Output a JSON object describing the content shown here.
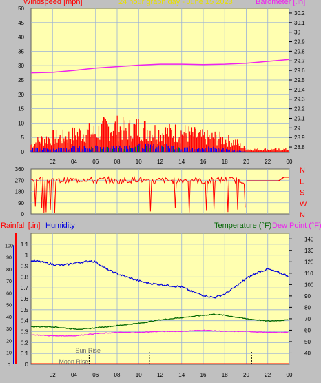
{
  "header": {
    "wind_label": "Windspeed [mph]",
    "title": "24 hour graph day - June 15 2023",
    "baro_label": "Barometer [.in]",
    "rain_label": "Rainfall [.in]",
    "humidity_label": "Humidity",
    "temp_label": "Temperature (°F)",
    "dew_label": "Dew Point (°F)",
    "sunrise_label": "Sun Rise",
    "moonrise_label": "Moon Rise"
  },
  "colors": {
    "wind": "#ff0000",
    "gust": "#ff0000",
    "wind_avg": "#0000ff",
    "wind_low": "#008000",
    "baro": "#ee22ee",
    "direction": "#ff0000",
    "humidity": "#0000dd",
    "temperature": "#006600",
    "dewpoint": "#ee22ee",
    "plot_bg": "#ffffb0",
    "grid": "#9ab0d8"
  },
  "chart_data": [
    {
      "type": "line",
      "title": "24 hour graph day - June 15 2023",
      "x_ticks": [
        "02",
        "04",
        "06",
        "08",
        "10",
        "12",
        "14",
        "16",
        "18",
        "20",
        "22",
        "00"
      ],
      "ylabel": "Windspeed [mph]",
      "ylim": [
        0,
        50
      ],
      "y_ticks": [
        0,
        5,
        10,
        15,
        20,
        25,
        30,
        35,
        40,
        45,
        50
      ],
      "y2label": "Barometer [.in]",
      "y2lim": [
        28.75,
        30.25
      ],
      "y2_ticks": [
        "28.8",
        "28.9",
        "29",
        "29.1",
        "29.2",
        "29.3",
        "29.4",
        "29.5",
        "29.6",
        "29.7",
        "29.8",
        "29.9",
        "30",
        "30.1",
        "30.2"
      ],
      "grid": true,
      "series": [
        {
          "name": "Barometer",
          "axis": "right",
          "color": "#ee22ee",
          "x": [
            0,
            2,
            4,
            6,
            8,
            10,
            12,
            14,
            16,
            18,
            20,
            22,
            24
          ],
          "values": [
            29.575,
            29.58,
            29.6,
            29.625,
            29.64,
            29.655,
            29.665,
            29.665,
            29.66,
            29.665,
            29.675,
            29.695,
            29.715
          ]
        },
        {
          "name": "Gust",
          "axis": "left",
          "color": "#ff0000",
          "x": [
            0,
            1,
            2,
            3,
            4,
            5,
            6,
            7,
            8,
            9,
            10,
            11,
            12,
            13,
            14,
            15,
            16,
            17,
            18,
            19,
            20,
            21,
            22,
            23,
            24
          ],
          "values": [
            3,
            5,
            6,
            6,
            7,
            8,
            8,
            10,
            10,
            9,
            10,
            9,
            8,
            8,
            8,
            7,
            6,
            6,
            5,
            4,
            1,
            1,
            1,
            1,
            1
          ]
        },
        {
          "name": "Average",
          "axis": "left",
          "color": "#0000ff",
          "x": [
            0,
            2,
            4,
            6,
            8,
            10,
            12,
            14,
            16,
            18,
            19,
            20
          ],
          "values": [
            1,
            1,
            1.5,
            1.5,
            2,
            2,
            2,
            1.5,
            1.5,
            1,
            0.5,
            0
          ]
        }
      ]
    },
    {
      "type": "line",
      "ylabel": "Wind direction",
      "ylim": [
        0,
        360
      ],
      "y_ticks": [
        0,
        90,
        180,
        270,
        360
      ],
      "y2_ticks": [
        "N",
        "W",
        "S",
        "E",
        "N"
      ],
      "x_ticks": [
        "02",
        "04",
        "06",
        "08",
        "10",
        "12",
        "14",
        "16",
        "18",
        "20",
        "22",
        "00"
      ],
      "grid": true,
      "series": [
        {
          "name": "Direction",
          "color": "#ff0000",
          "x": [
            0,
            1,
            2,
            3,
            4,
            5,
            6,
            7,
            8,
            9,
            10,
            11,
            12,
            13,
            14,
            15,
            16,
            17,
            18,
            19,
            20,
            21,
            22,
            23,
            23.5,
            24
          ],
          "values": [
            270,
            280,
            260,
            270,
            270,
            280,
            265,
            275,
            260,
            270,
            280,
            250,
            270,
            265,
            270,
            275,
            260,
            270,
            275,
            270,
            265,
            265,
            265,
            265,
            295,
            295
          ]
        }
      ]
    },
    {
      "type": "line",
      "x_ticks": [
        "02",
        "04",
        "06",
        "08",
        "10",
        "12",
        "14",
        "16",
        "18",
        "20",
        "22",
        "00"
      ],
      "ylabel": "Rainfall [.in]",
      "ylim": [
        0,
        1.2
      ],
      "y_ticks": [
        "0",
        "0.1",
        "0.2",
        "0.3",
        "0.4",
        "0.5",
        "0.6",
        "0.7",
        "0.8",
        "0.9",
        "1",
        "1.1"
      ],
      "humidity_ticks": [
        0,
        10,
        20,
        30,
        40,
        50,
        60,
        70,
        80,
        90,
        100
      ],
      "y2label": "Temperature (°F)",
      "y2lim": [
        30,
        145
      ],
      "y2_ticks": [
        40,
        50,
        60,
        70,
        80,
        90,
        100,
        110,
        120,
        130,
        140
      ],
      "grid": true,
      "series": [
        {
          "name": "Humidity",
          "axis": "humidity",
          "color": "#0000dd",
          "x": [
            0,
            1,
            2,
            3,
            4,
            5,
            5.5,
            6,
            7,
            8,
            9,
            10,
            11,
            12,
            13,
            14,
            15,
            16,
            17,
            18,
            19,
            20,
            21,
            22,
            23,
            24
          ],
          "values": [
            87,
            86,
            84,
            83,
            85,
            86,
            87,
            86,
            80,
            76,
            73,
            70,
            68,
            67,
            66,
            65,
            61,
            58,
            56,
            59,
            65,
            72,
            77,
            80,
            77,
            74
          ]
        },
        {
          "name": "Temperature",
          "axis": "right",
          "color": "#006600",
          "x": [
            0,
            2,
            4,
            5,
            6,
            8,
            10,
            12,
            14,
            16,
            17,
            18,
            20,
            22,
            24
          ],
          "values": [
            63,
            63,
            61,
            61,
            62,
            64,
            66,
            69,
            71,
            73,
            74,
            73,
            70,
            68,
            69
          ]
        },
        {
          "name": "Dew Point",
          "axis": "right",
          "color": "#ee22ee",
          "x": [
            0,
            2,
            4,
            6,
            8,
            10,
            12,
            14,
            16,
            18,
            20,
            22,
            24
          ],
          "values": [
            56,
            55,
            55,
            57,
            58,
            58,
            59,
            59,
            60,
            59,
            59,
            58,
            58
          ]
        },
        {
          "name": "Rainfall",
          "axis": "left",
          "color": "#ff0000",
          "x": [
            0,
            24
          ],
          "values": [
            0,
            0
          ]
        }
      ]
    }
  ]
}
